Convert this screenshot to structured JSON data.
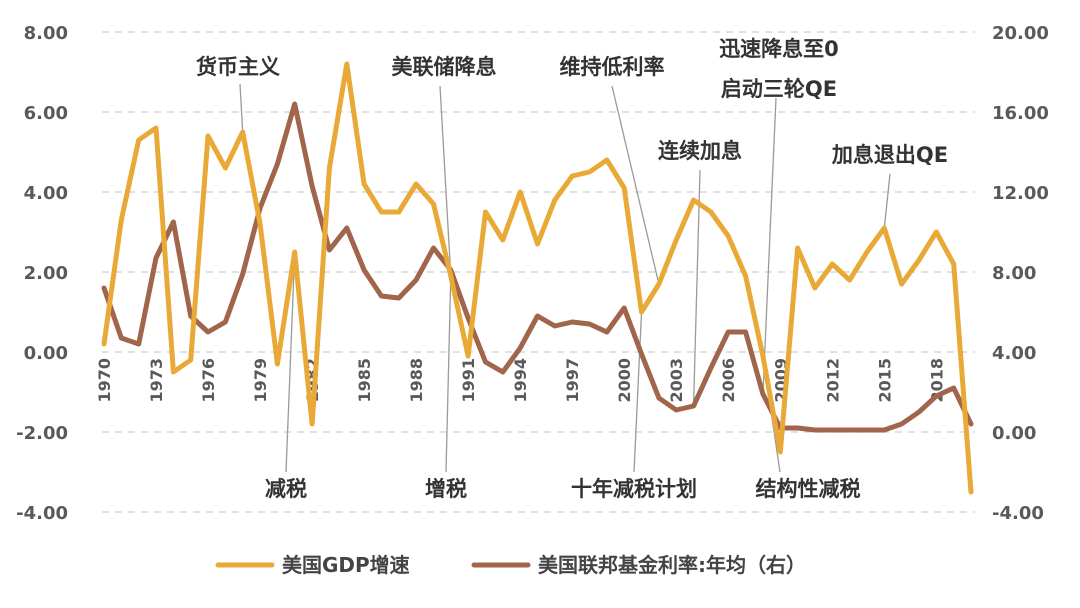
{
  "chart_data": {
    "type": "line",
    "title": "",
    "xlabel": "",
    "ylabel": "",
    "y2label": "",
    "x": [
      1970,
      1971,
      1972,
      1973,
      1974,
      1975,
      1976,
      1977,
      1978,
      1979,
      1980,
      1981,
      1982,
      1983,
      1984,
      1985,
      1986,
      1987,
      1988,
      1989,
      1990,
      1991,
      1992,
      1993,
      1994,
      1995,
      1996,
      1997,
      1998,
      1999,
      2000,
      2001,
      2002,
      2003,
      2004,
      2005,
      2006,
      2007,
      2008,
      2009,
      2010,
      2011,
      2012,
      2013,
      2014,
      2015,
      2016,
      2017,
      2018,
      2019,
      2020
    ],
    "x_tick_labels": [
      "1970",
      "1973",
      "1976",
      "1979",
      "1982",
      "1985",
      "1988",
      "1991",
      "1994",
      "1997",
      "2000",
      "2003",
      "2006",
      "2009",
      "2012",
      "2015",
      "2018"
    ],
    "ylim": [
      -4,
      8
    ],
    "y_ticks": [
      "-4.00",
      "-2.00",
      "0.00",
      "2.00",
      "4.00",
      "6.00",
      "8.00"
    ],
    "y2lim": [
      -4,
      20
    ],
    "y2_ticks": [
      "-4.00",
      "0.00",
      "4.00",
      "8.00",
      "12.00",
      "16.00",
      "20.00"
    ],
    "grid": "horizontal dashed",
    "legend_position": "bottom",
    "series": [
      {
        "name": "美国GDP增速",
        "axis": "left",
        "color": "#E9A937",
        "values": [
          0.2,
          3.3,
          5.3,
          5.6,
          -0.5,
          -0.2,
          5.4,
          4.6,
          5.5,
          3.2,
          -0.3,
          2.5,
          -1.8,
          4.6,
          7.2,
          4.2,
          3.5,
          3.5,
          4.2,
          3.7,
          1.9,
          -0.1,
          3.5,
          2.8,
          4.0,
          2.7,
          3.8,
          4.4,
          4.5,
          4.8,
          4.1,
          1.0,
          1.7,
          2.8,
          3.8,
          3.5,
          2.9,
          1.9,
          -0.1,
          -2.5,
          2.6,
          1.6,
          2.2,
          1.8,
          2.5,
          3.1,
          1.7,
          2.3,
          3.0,
          2.2,
          -3.5
        ]
      },
      {
        "name": "美国联邦基金利率:年均（右）",
        "axis": "right",
        "color": "#A0654A",
        "values": [
          7.2,
          4.7,
          4.4,
          8.7,
          10.5,
          5.8,
          5.0,
          5.5,
          7.9,
          11.2,
          13.4,
          16.4,
          12.3,
          9.1,
          10.2,
          8.1,
          6.8,
          6.7,
          7.6,
          9.2,
          8.1,
          5.7,
          3.5,
          3.0,
          4.2,
          5.8,
          5.3,
          5.5,
          5.4,
          5.0,
          6.2,
          3.9,
          1.7,
          1.1,
          1.3,
          3.2,
          5.0,
          5.0,
          1.9,
          0.2,
          0.2,
          0.1,
          0.1,
          0.1,
          0.1,
          0.1,
          0.4,
          1.0,
          1.8,
          2.2,
          0.4
        ]
      }
    ],
    "annotations": [
      {
        "text": "货币主义",
        "year": 1978,
        "target": "gdp"
      },
      {
        "text": "美联储降息",
        "year": 1990,
        "target": "gdp"
      },
      {
        "text": "维持低利率",
        "year": 2002,
        "target": "gdp"
      },
      {
        "text": "迅速降息至0",
        "year": 2008,
        "target": "rate"
      },
      {
        "text": "启动三轮QE",
        "year": 2008,
        "target": "rate"
      },
      {
        "text": "连续加息",
        "year": 2004,
        "target": "rate"
      },
      {
        "text": "加息退出QE",
        "year": 2015,
        "target": "gdp"
      },
      {
        "text": "减税",
        "year": 1981,
        "target": "gdp"
      },
      {
        "text": "增税",
        "year": 1990,
        "target": "gdp"
      },
      {
        "text": "十年减税计划",
        "year": 2001,
        "target": "gdp"
      },
      {
        "text": "结构性减税",
        "year": 2008,
        "target": "gdp"
      }
    ]
  }
}
